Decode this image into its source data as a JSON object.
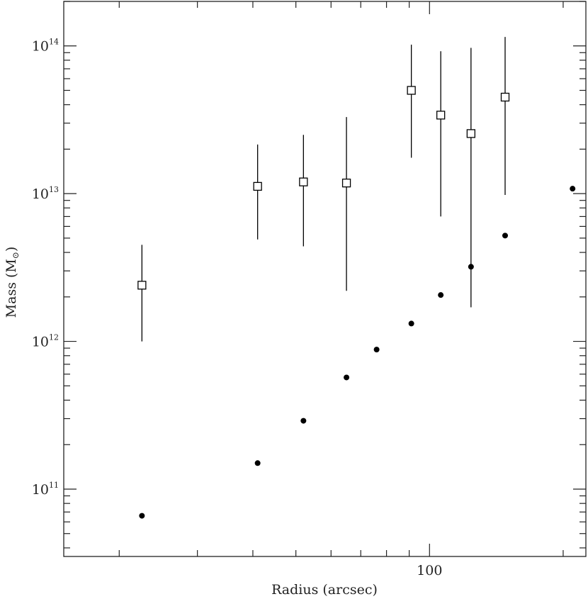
{
  "chart_data": {
    "type": "scatter",
    "title": "",
    "xlabel": "Radius (arcsec)",
    "ylabel_main": "Mass (M",
    "ylabel_sub": "⊙",
    "ylabel_close": ")",
    "xscale": "log",
    "yscale": "log",
    "xlim": [
      15,
      225
    ],
    "ylim": [
      35000000000,
      200000000000000
    ],
    "grid": false,
    "x_tick_labels": [
      {
        "value": 100,
        "text": "100"
      }
    ],
    "y_tick_labels": [
      {
        "value": 100000000000,
        "base": "10",
        "exp": "11"
      },
      {
        "value": 1000000000000,
        "base": "10",
        "exp": "12"
      },
      {
        "value": 10000000000000,
        "base": "10",
        "exp": "13"
      },
      {
        "value": 100000000000000,
        "base": "10",
        "exp": "14"
      }
    ],
    "series": [
      {
        "marker": "open-square",
        "points": [
          {
            "x": 22.5,
            "y": 2400000000000,
            "ylo": 1000000000000,
            "yhi": 4500000000000
          },
          {
            "x": 41,
            "y": 11200000000000,
            "ylo": 4900000000000,
            "yhi": 21500000000000
          },
          {
            "x": 52,
            "y": 12000000000000,
            "ylo": 4400000000000,
            "yhi": 25000000000000
          },
          {
            "x": 65,
            "y": 11800000000000,
            "ylo": 2200000000000,
            "yhi": 33000000000000
          },
          {
            "x": 91,
            "y": 50000000000000,
            "ylo": 17500000000000,
            "yhi": 102000000000000
          },
          {
            "x": 106,
            "y": 34000000000000,
            "ylo": 7000000000000,
            "yhi": 92000000000000
          },
          {
            "x": 124,
            "y": 25500000000000,
            "ylo": 1700000000000,
            "yhi": 97000000000000
          },
          {
            "x": 148,
            "y": 45000000000000,
            "ylo": 9800000000000,
            "yhi": 115000000000000
          }
        ]
      },
      {
        "marker": "filled-circle",
        "points": [
          {
            "x": 22.5,
            "y": 66000000000
          },
          {
            "x": 41,
            "y": 150000000000
          },
          {
            "x": 52,
            "y": 290000000000
          },
          {
            "x": 65,
            "y": 570000000000
          },
          {
            "x": 76,
            "y": 880000000000
          },
          {
            "x": 91,
            "y": 1320000000000
          },
          {
            "x": 106,
            "y": 2060000000000
          },
          {
            "x": 124,
            "y": 3200000000000
          },
          {
            "x": 148,
            "y": 5200000000000
          },
          {
            "x": 210,
            "y": 10800000000000
          }
        ]
      }
    ],
    "colors": {
      "axis": "#222222",
      "marker": "#000000",
      "errorbar": "#000000"
    }
  }
}
